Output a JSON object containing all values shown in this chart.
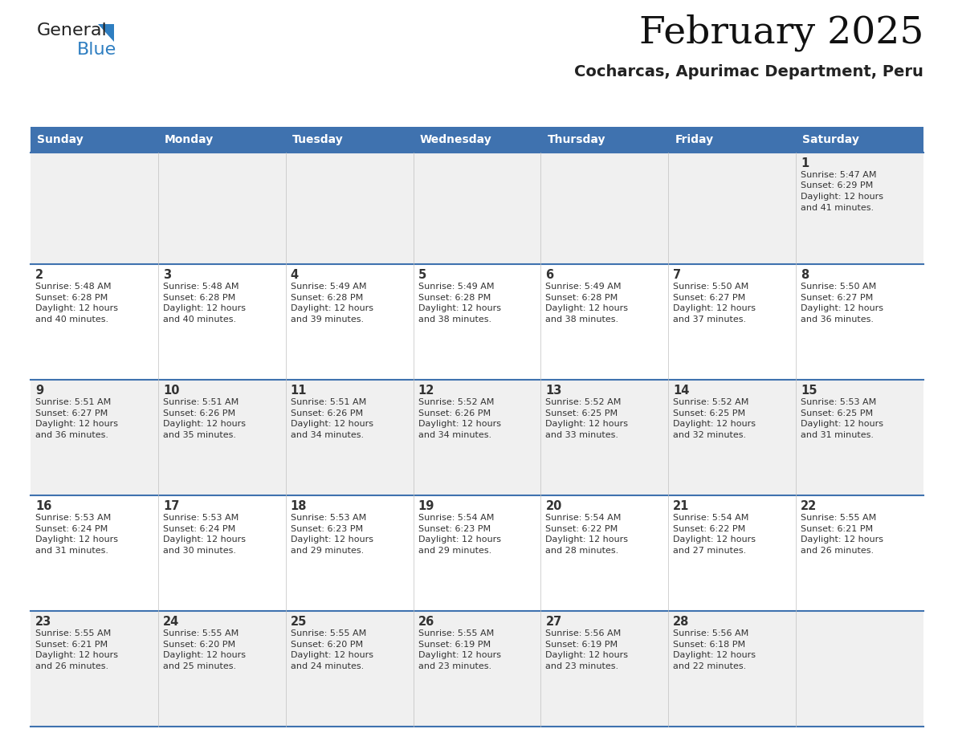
{
  "title": "February 2025",
  "subtitle": "Cocharcas, Apurimac Department, Peru",
  "header_color": "#3F72AF",
  "header_text_color": "#FFFFFF",
  "cell_bg_row0": "#F0F0F0",
  "cell_bg_row1": "#FFFFFF",
  "cell_bg_row2": "#F0F0F0",
  "cell_bg_row3": "#FFFFFF",
  "cell_bg_row4": "#F0F0F0",
  "grid_line_color": "#3F72AF",
  "text_color": "#333333",
  "days_of_week": [
    "Sunday",
    "Monday",
    "Tuesday",
    "Wednesday",
    "Thursday",
    "Friday",
    "Saturday"
  ],
  "logo_general_color": "#222222",
  "logo_blue_color": "#2E7EC1",
  "calendar_data": [
    [
      {
        "day": null,
        "sunrise": null,
        "sunset": null,
        "daylight_line1": null,
        "daylight_line2": null
      },
      {
        "day": null,
        "sunrise": null,
        "sunset": null,
        "daylight_line1": null,
        "daylight_line2": null
      },
      {
        "day": null,
        "sunrise": null,
        "sunset": null,
        "daylight_line1": null,
        "daylight_line2": null
      },
      {
        "day": null,
        "sunrise": null,
        "sunset": null,
        "daylight_line1": null,
        "daylight_line2": null
      },
      {
        "day": null,
        "sunrise": null,
        "sunset": null,
        "daylight_line1": null,
        "daylight_line2": null
      },
      {
        "day": null,
        "sunrise": null,
        "sunset": null,
        "daylight_line1": null,
        "daylight_line2": null
      },
      {
        "day": "1",
        "sunrise": "Sunrise: 5:47 AM",
        "sunset": "Sunset: 6:29 PM",
        "daylight_line1": "Daylight: 12 hours",
        "daylight_line2": "and 41 minutes."
      }
    ],
    [
      {
        "day": "2",
        "sunrise": "Sunrise: 5:48 AM",
        "sunset": "Sunset: 6:28 PM",
        "daylight_line1": "Daylight: 12 hours",
        "daylight_line2": "and 40 minutes."
      },
      {
        "day": "3",
        "sunrise": "Sunrise: 5:48 AM",
        "sunset": "Sunset: 6:28 PM",
        "daylight_line1": "Daylight: 12 hours",
        "daylight_line2": "and 40 minutes."
      },
      {
        "day": "4",
        "sunrise": "Sunrise: 5:49 AM",
        "sunset": "Sunset: 6:28 PM",
        "daylight_line1": "Daylight: 12 hours",
        "daylight_line2": "and 39 minutes."
      },
      {
        "day": "5",
        "sunrise": "Sunrise: 5:49 AM",
        "sunset": "Sunset: 6:28 PM",
        "daylight_line1": "Daylight: 12 hours",
        "daylight_line2": "and 38 minutes."
      },
      {
        "day": "6",
        "sunrise": "Sunrise: 5:49 AM",
        "sunset": "Sunset: 6:28 PM",
        "daylight_line1": "Daylight: 12 hours",
        "daylight_line2": "and 38 minutes."
      },
      {
        "day": "7",
        "sunrise": "Sunrise: 5:50 AM",
        "sunset": "Sunset: 6:27 PM",
        "daylight_line1": "Daylight: 12 hours",
        "daylight_line2": "and 37 minutes."
      },
      {
        "day": "8",
        "sunrise": "Sunrise: 5:50 AM",
        "sunset": "Sunset: 6:27 PM",
        "daylight_line1": "Daylight: 12 hours",
        "daylight_line2": "and 36 minutes."
      }
    ],
    [
      {
        "day": "9",
        "sunrise": "Sunrise: 5:51 AM",
        "sunset": "Sunset: 6:27 PM",
        "daylight_line1": "Daylight: 12 hours",
        "daylight_line2": "and 36 minutes."
      },
      {
        "day": "10",
        "sunrise": "Sunrise: 5:51 AM",
        "sunset": "Sunset: 6:26 PM",
        "daylight_line1": "Daylight: 12 hours",
        "daylight_line2": "and 35 minutes."
      },
      {
        "day": "11",
        "sunrise": "Sunrise: 5:51 AM",
        "sunset": "Sunset: 6:26 PM",
        "daylight_line1": "Daylight: 12 hours",
        "daylight_line2": "and 34 minutes."
      },
      {
        "day": "12",
        "sunrise": "Sunrise: 5:52 AM",
        "sunset": "Sunset: 6:26 PM",
        "daylight_line1": "Daylight: 12 hours",
        "daylight_line2": "and 34 minutes."
      },
      {
        "day": "13",
        "sunrise": "Sunrise: 5:52 AM",
        "sunset": "Sunset: 6:25 PM",
        "daylight_line1": "Daylight: 12 hours",
        "daylight_line2": "and 33 minutes."
      },
      {
        "day": "14",
        "sunrise": "Sunrise: 5:52 AM",
        "sunset": "Sunset: 6:25 PM",
        "daylight_line1": "Daylight: 12 hours",
        "daylight_line2": "and 32 minutes."
      },
      {
        "day": "15",
        "sunrise": "Sunrise: 5:53 AM",
        "sunset": "Sunset: 6:25 PM",
        "daylight_line1": "Daylight: 12 hours",
        "daylight_line2": "and 31 minutes."
      }
    ],
    [
      {
        "day": "16",
        "sunrise": "Sunrise: 5:53 AM",
        "sunset": "Sunset: 6:24 PM",
        "daylight_line1": "Daylight: 12 hours",
        "daylight_line2": "and 31 minutes."
      },
      {
        "day": "17",
        "sunrise": "Sunrise: 5:53 AM",
        "sunset": "Sunset: 6:24 PM",
        "daylight_line1": "Daylight: 12 hours",
        "daylight_line2": "and 30 minutes."
      },
      {
        "day": "18",
        "sunrise": "Sunrise: 5:53 AM",
        "sunset": "Sunset: 6:23 PM",
        "daylight_line1": "Daylight: 12 hours",
        "daylight_line2": "and 29 minutes."
      },
      {
        "day": "19",
        "sunrise": "Sunrise: 5:54 AM",
        "sunset": "Sunset: 6:23 PM",
        "daylight_line1": "Daylight: 12 hours",
        "daylight_line2": "and 29 minutes."
      },
      {
        "day": "20",
        "sunrise": "Sunrise: 5:54 AM",
        "sunset": "Sunset: 6:22 PM",
        "daylight_line1": "Daylight: 12 hours",
        "daylight_line2": "and 28 minutes."
      },
      {
        "day": "21",
        "sunrise": "Sunrise: 5:54 AM",
        "sunset": "Sunset: 6:22 PM",
        "daylight_line1": "Daylight: 12 hours",
        "daylight_line2": "and 27 minutes."
      },
      {
        "day": "22",
        "sunrise": "Sunrise: 5:55 AM",
        "sunset": "Sunset: 6:21 PM",
        "daylight_line1": "Daylight: 12 hours",
        "daylight_line2": "and 26 minutes."
      }
    ],
    [
      {
        "day": "23",
        "sunrise": "Sunrise: 5:55 AM",
        "sunset": "Sunset: 6:21 PM",
        "daylight_line1": "Daylight: 12 hours",
        "daylight_line2": "and 26 minutes."
      },
      {
        "day": "24",
        "sunrise": "Sunrise: 5:55 AM",
        "sunset": "Sunset: 6:20 PM",
        "daylight_line1": "Daylight: 12 hours",
        "daylight_line2": "and 25 minutes."
      },
      {
        "day": "25",
        "sunrise": "Sunrise: 5:55 AM",
        "sunset": "Sunset: 6:20 PM",
        "daylight_line1": "Daylight: 12 hours",
        "daylight_line2": "and 24 minutes."
      },
      {
        "day": "26",
        "sunrise": "Sunrise: 5:55 AM",
        "sunset": "Sunset: 6:19 PM",
        "daylight_line1": "Daylight: 12 hours",
        "daylight_line2": "and 23 minutes."
      },
      {
        "day": "27",
        "sunrise": "Sunrise: 5:56 AM",
        "sunset": "Sunset: 6:19 PM",
        "daylight_line1": "Daylight: 12 hours",
        "daylight_line2": "and 23 minutes."
      },
      {
        "day": "28",
        "sunrise": "Sunrise: 5:56 AM",
        "sunset": "Sunset: 6:18 PM",
        "daylight_line1": "Daylight: 12 hours",
        "daylight_line2": "and 22 minutes."
      },
      {
        "day": null,
        "sunrise": null,
        "sunset": null,
        "daylight_line1": null,
        "daylight_line2": null
      }
    ]
  ]
}
